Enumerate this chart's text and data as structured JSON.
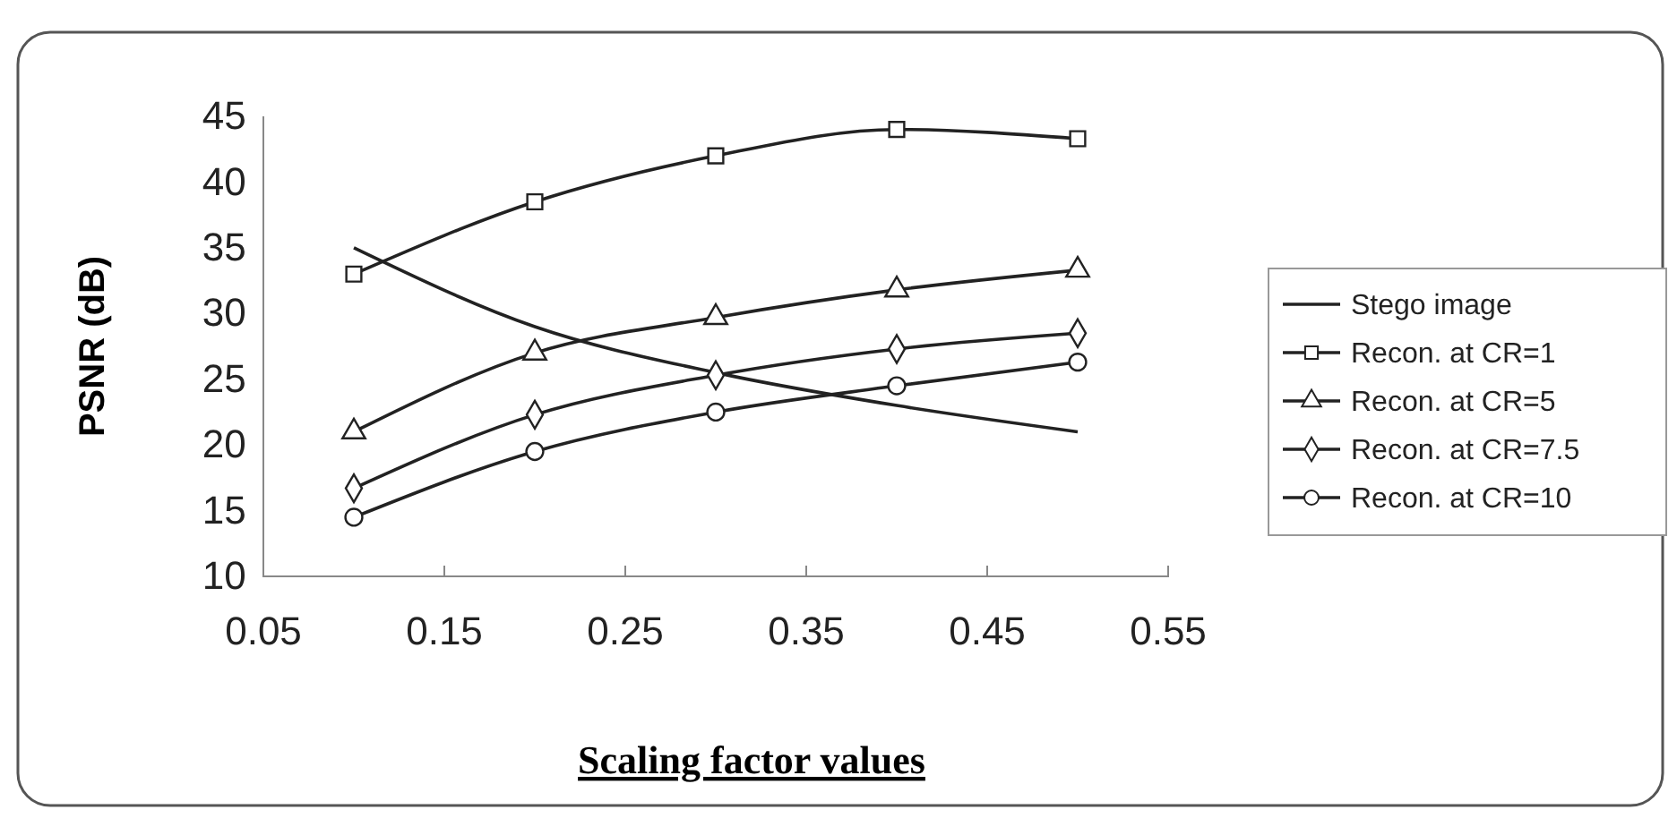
{
  "chart_data": {
    "type": "line",
    "xlabel": "Scaling factor values",
    "ylabel": "PSNR (dB)",
    "x": [
      0.1,
      0.2,
      0.3,
      0.4,
      0.5
    ],
    "xlim": [
      0.05,
      0.55
    ],
    "xticks": [
      0.05,
      0.15,
      0.25,
      0.35,
      0.45,
      0.55
    ],
    "ylim": [
      10,
      45
    ],
    "yticks": [
      10,
      15,
      20,
      25,
      30,
      35,
      40,
      45
    ],
    "grid": false,
    "legend": "right",
    "line_style": "solid",
    "series": [
      {
        "name": "Stego image",
        "color": "#222222",
        "marker": "none",
        "values": [
          35,
          29,
          25.5,
          23,
          21
        ]
      },
      {
        "name": "Recon. at CR=1",
        "color": "#222222",
        "marker": "square",
        "values": [
          33,
          38.5,
          42,
          44,
          43.3
        ]
      },
      {
        "name": "Recon. at CR=5",
        "color": "#222222",
        "marker": "triangle",
        "values": [
          21,
          27,
          29.7,
          31.8,
          33.3
        ]
      },
      {
        "name": "Recon. at CR=7.5",
        "color": "#222222",
        "marker": "diamond",
        "values": [
          16.7,
          22.3,
          25.3,
          27.3,
          28.5
        ]
      },
      {
        "name": "Recon. at CR=10",
        "color": "#222222",
        "marker": "circle",
        "values": [
          14.5,
          19.5,
          22.5,
          24.5,
          26.3
        ]
      }
    ]
  }
}
